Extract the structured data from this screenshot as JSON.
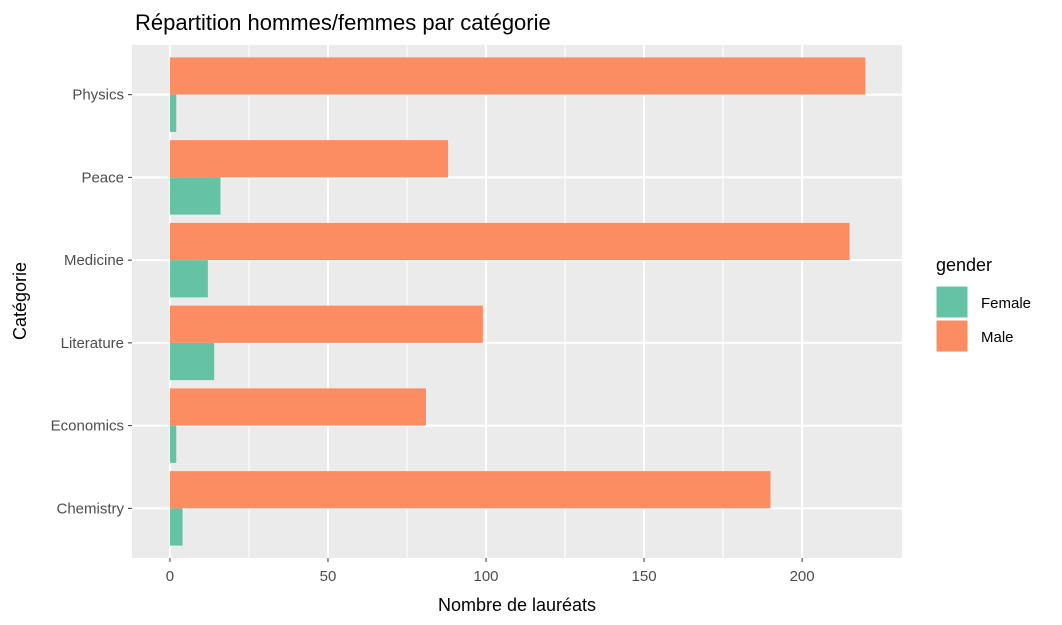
{
  "chart_data": {
    "type": "bar",
    "orientation": "horizontal",
    "position": "dodge",
    "title": "Répartition hommes/femmes par catégorie",
    "xlabel": "Nombre de lauréats",
    "ylabel": "Catégorie",
    "categories": [
      "Chemistry",
      "Economics",
      "Literature",
      "Medicine",
      "Peace",
      "Physics"
    ],
    "series": [
      {
        "name": "Female",
        "color": "#66c2a5",
        "values": [
          4,
          2,
          14,
          12,
          16,
          2
        ]
      },
      {
        "name": "Male",
        "color": "#fc8d62",
        "values": [
          190,
          81,
          99,
          215,
          88,
          220
        ]
      }
    ],
    "xlim": [
      -12,
      231.6
    ],
    "xticks": [
      0,
      50,
      100,
      150,
      200
    ],
    "xtick_labels": [
      "0",
      "50",
      "100",
      "150",
      "200"
    ],
    "grid": true,
    "panel_background": "#ebebeb",
    "grid_color": "#ffffff",
    "legend": {
      "title": "gender",
      "position": "right",
      "entries": [
        "Female",
        "Male"
      ]
    }
  }
}
